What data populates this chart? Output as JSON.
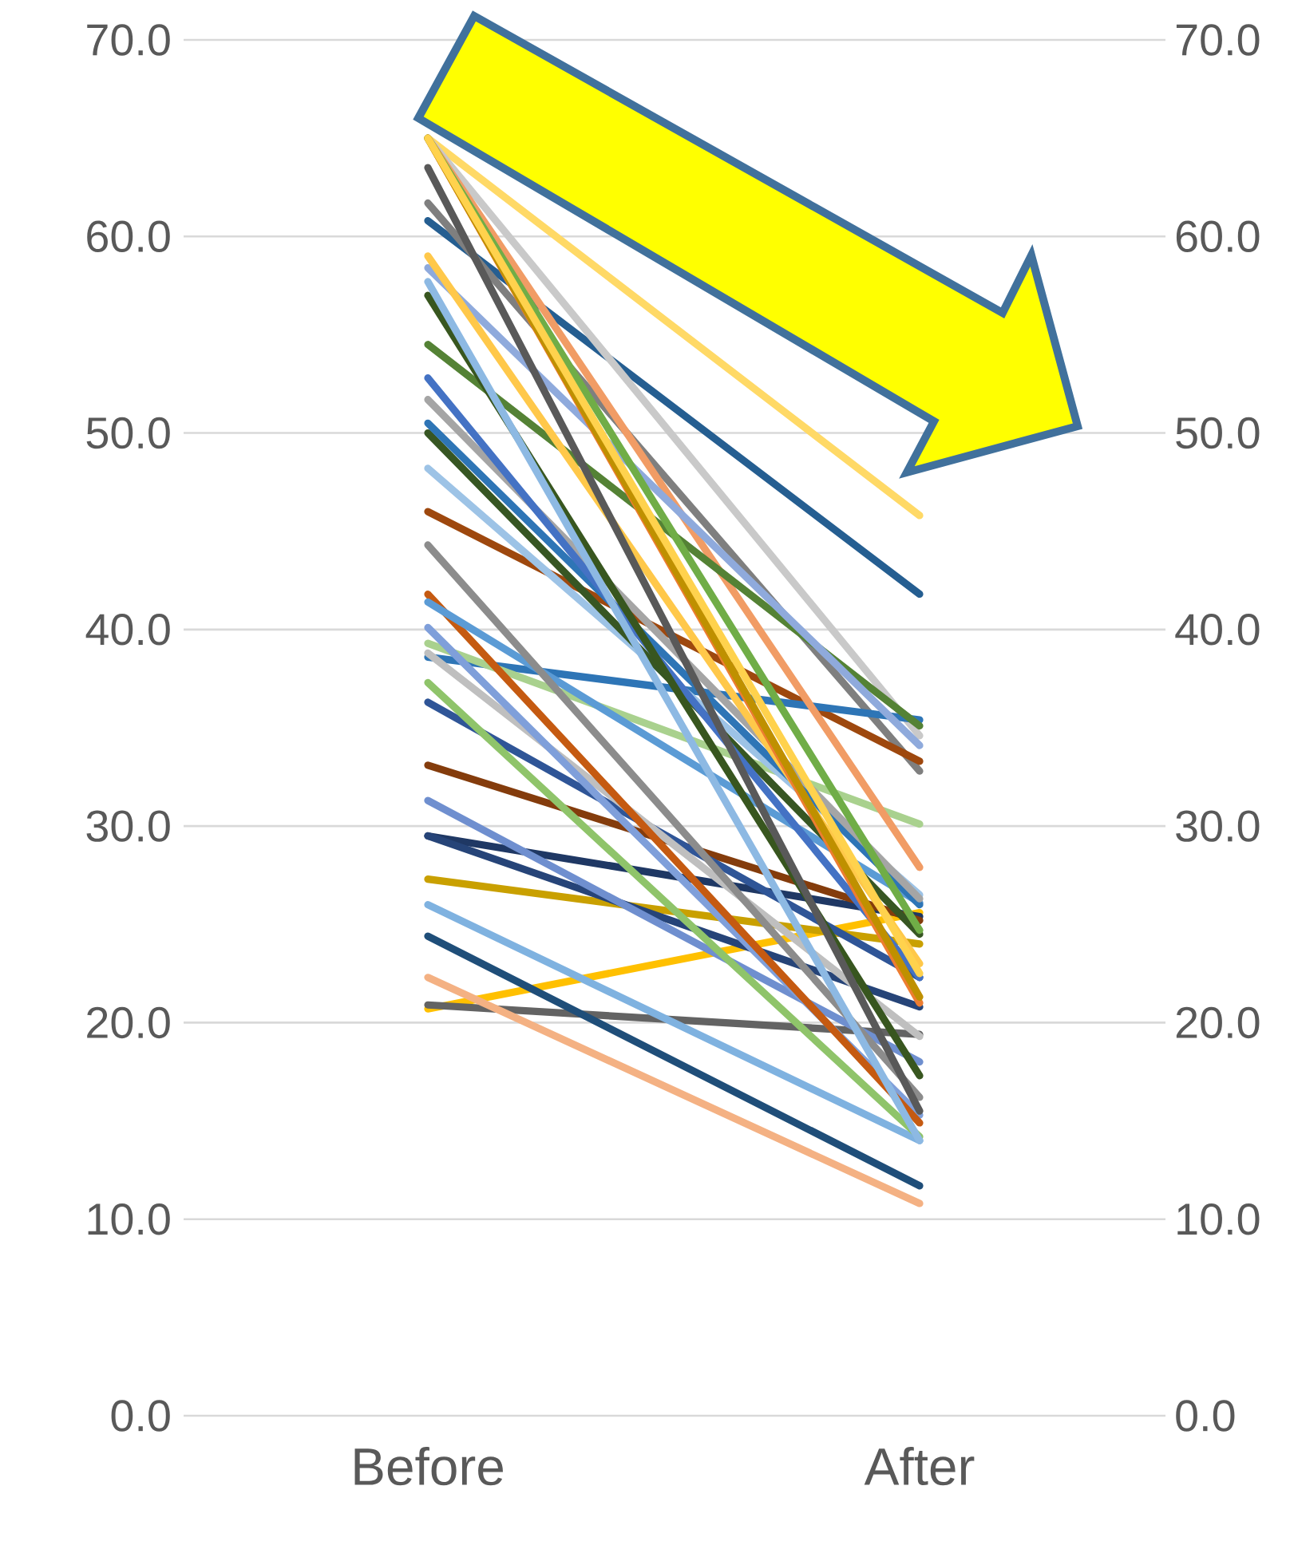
{
  "chart_data": {
    "type": "line",
    "categories": [
      "Before",
      "After"
    ],
    "ylim": [
      0,
      70
    ],
    "yticks": [
      {
        "value": 0,
        "label": "0.0"
      },
      {
        "value": 10,
        "label": "10.0"
      },
      {
        "value": 20,
        "label": "20.0"
      },
      {
        "value": 30,
        "label": "30.0"
      },
      {
        "value": 40,
        "label": "40.0"
      },
      {
        "value": 50,
        "label": "50.0"
      },
      {
        "value": 60,
        "label": "60.0"
      },
      {
        "value": 70,
        "label": "70.0"
      }
    ],
    "y2lim": [
      0,
      70
    ],
    "y2ticks": [
      {
        "value": 0,
        "label": "0.0"
      },
      {
        "value": 10,
        "label": "10.0"
      },
      {
        "value": 20,
        "label": "20.0"
      },
      {
        "value": 30,
        "label": "30.0"
      },
      {
        "value": 40,
        "label": "40.0"
      },
      {
        "value": 50,
        "label": "50.0"
      },
      {
        "value": 60,
        "label": "60.0"
      },
      {
        "value": 70,
        "label": "70.0"
      }
    ],
    "grid": "y",
    "series": [
      {
        "color": "#ffd966",
        "values": [
          65.0,
          45.8
        ]
      },
      {
        "color": "#255e91",
        "values": [
          60.8,
          41.8
        ]
      },
      {
        "color": "#c9c9c9",
        "values": [
          65.0,
          34.6
        ]
      },
      {
        "color": "#7f7f7f",
        "values": [
          61.7,
          32.8
        ]
      },
      {
        "color": "#9e480e",
        "values": [
          46.0,
          33.3
        ]
      },
      {
        "color": "#2e75b6",
        "values": [
          38.6,
          35.4
        ]
      },
      {
        "color": "#a9d18e",
        "values": [
          39.3,
          30.1
        ]
      },
      {
        "color": "#f19c65",
        "values": [
          65.0,
          27.9
        ]
      },
      {
        "color": "#ffc000",
        "values": [
          20.7,
          25.6
        ]
      },
      {
        "color": "#636363",
        "values": [
          20.9,
          19.4
        ]
      },
      {
        "color": "#f4b183",
        "values": [
          22.3,
          10.8
        ]
      },
      {
        "color": "#1f4e79",
        "values": [
          24.4,
          11.7
        ]
      },
      {
        "color": "#7fb2e0",
        "values": [
          26.0,
          14.0
        ]
      },
      {
        "color": "#c9a000",
        "values": [
          27.3,
          24.0
        ]
      },
      {
        "color": "#1f3864",
        "values": [
          29.5,
          25.4
        ]
      },
      {
        "color": "#264478",
        "values": [
          29.5,
          20.8
        ]
      },
      {
        "color": "#6f8fcf",
        "values": [
          31.3,
          18.0
        ]
      },
      {
        "color": "#843c0c",
        "values": [
          33.1,
          25.2
        ]
      },
      {
        "color": "#2f5597",
        "values": [
          36.3,
          22.3
        ]
      },
      {
        "color": "#8fc46a",
        "values": [
          37.3,
          14.2
        ]
      },
      {
        "color": "#bfbfbf",
        "values": [
          38.8,
          19.3
        ]
      },
      {
        "color": "#7f9fda",
        "values": [
          40.1,
          15.3
        ]
      },
      {
        "color": "#c55a11",
        "values": [
          41.8,
          14.9
        ]
      },
      {
        "color": "#5b9bd5",
        "values": [
          41.4,
          26.1
        ]
      },
      {
        "color": "#8c8c8c",
        "values": [
          44.3,
          16.2
        ]
      },
      {
        "color": "#9dc3e6",
        "values": [
          48.2,
          26.5
        ]
      },
      {
        "color": "#375623",
        "values": [
          50.0,
          24.5
        ]
      },
      {
        "color": "#2e75b6",
        "values": [
          50.5,
          26.0
        ]
      },
      {
        "color": "#a5a5a5",
        "values": [
          51.7,
          26.3
        ]
      },
      {
        "color": "#4472c4",
        "values": [
          52.8,
          22.3
        ]
      },
      {
        "color": "#548235",
        "values": [
          54.5,
          35.1
        ]
      },
      {
        "color": "#38561f",
        "values": [
          57.0,
          17.3
        ]
      },
      {
        "color": "#8db9e3",
        "values": [
          57.7,
          14.0
        ]
      },
      {
        "color": "#8faadc",
        "values": [
          58.4,
          34.1
        ]
      },
      {
        "color": "#ffc84a",
        "values": [
          59.0,
          23.0
        ]
      },
      {
        "color": "#595959",
        "values": [
          63.5,
          15.5
        ]
      },
      {
        "color": "#ed7d31",
        "values": [
          65.0,
          21.0
        ]
      },
      {
        "color": "#bf9000",
        "values": [
          65.0,
          21.3
        ]
      },
      {
        "color": "#70ad47",
        "values": [
          65.0,
          24.7
        ]
      },
      {
        "color": "#ffd24d",
        "values": [
          65.0,
          22.5
        ]
      }
    ]
  }
}
